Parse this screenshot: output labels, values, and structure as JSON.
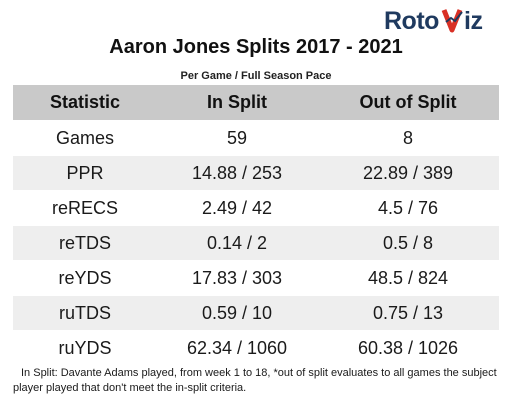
{
  "brand": {
    "logo_text": "RotoViz",
    "logo_color": "#1f3a5f"
  },
  "title": "Aaron Jones Splits 2017 - 2021",
  "subtitle": "Per Game / Full Season Pace",
  "table": {
    "headers": [
      "Statistic",
      "In Split",
      "Out of Split"
    ],
    "rows": [
      {
        "stat": "Games",
        "in_split": "59",
        "out_split": "8"
      },
      {
        "stat": "PPR",
        "in_split": "14.88 / 253",
        "out_split": "22.89 / 389"
      },
      {
        "stat": "reRECS",
        "in_split": "2.49 / 42",
        "out_split": "4.5 / 76"
      },
      {
        "stat": "reTDS",
        "in_split": "0.14 / 2",
        "out_split": "0.5 / 8"
      },
      {
        "stat": "reYDS",
        "in_split": "17.83 / 303",
        "out_split": "48.5 / 824"
      },
      {
        "stat": "ruTDS",
        "in_split": "0.59 / 10",
        "out_split": "0.75 / 13"
      },
      {
        "stat": "ruYDS",
        "in_split": "62.34 / 1060",
        "out_split": "60.38 / 1026"
      }
    ],
    "header_bg": "#c9c9c9",
    "stripe_bg": "#eeeeee"
  },
  "footnote": "In Split: Davante Adams played, from week 1 to 18,  *out of split evaluates to all games the subject player played that don't meet the in-split criteria."
}
